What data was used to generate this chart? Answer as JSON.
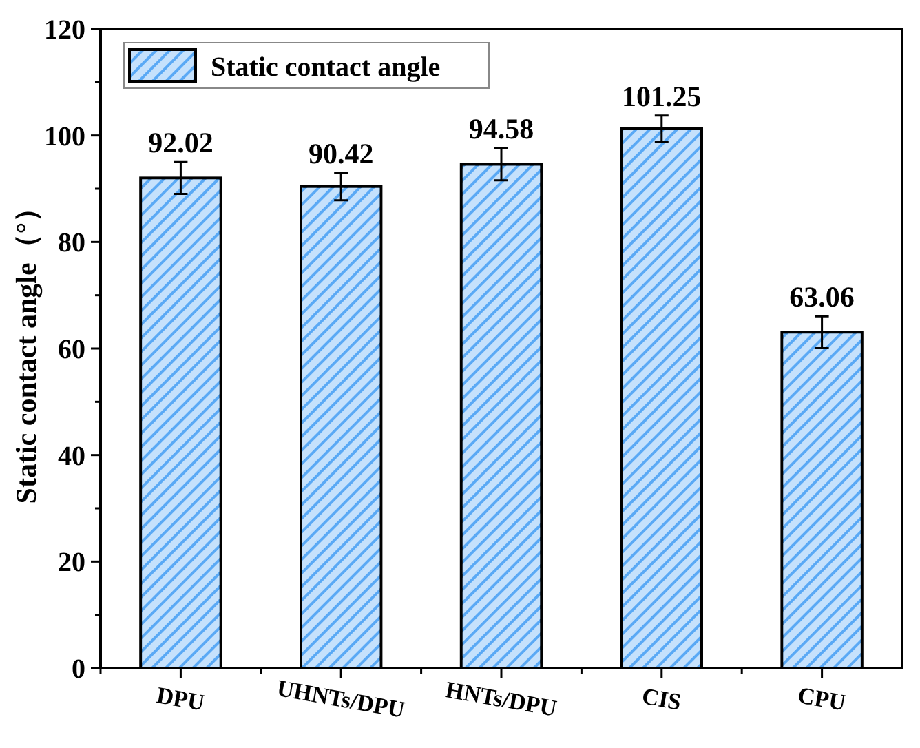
{
  "chart_data": {
    "type": "bar",
    "ylabel": "Static contact angle（°）",
    "categories": [
      "DPU",
      "UHNTs/DPU",
      "HNTs/DPU",
      "CIS",
      "CPU"
    ],
    "series": [
      {
        "name": "Static contact angle",
        "color": "#5aa9f5",
        "values": [
          92.02,
          90.42,
          94.58,
          101.25,
          63.06
        ],
        "errors": [
          3,
          2.6,
          3,
          2.5,
          3
        ]
      }
    ],
    "ylim": [
      0,
      120
    ],
    "yticks": [
      0,
      20,
      40,
      60,
      80,
      100,
      120
    ],
    "data_labels": true,
    "legend": "top left"
  }
}
